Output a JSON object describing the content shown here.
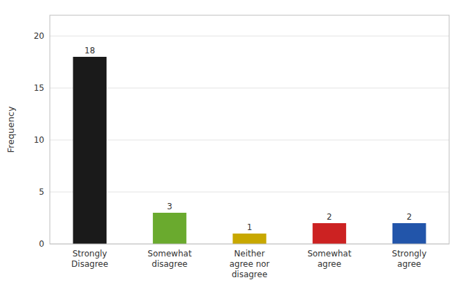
{
  "chart_data": {
    "type": "bar",
    "ylabel": "Frequency",
    "categories": [
      "Strongly\nDisagree",
      "Somewhat\ndisagree",
      "Neither\nagree nor\ndisagree",
      "Somewhat\nagree",
      "Strongly\nagree"
    ],
    "values": [
      18,
      3,
      1,
      2,
      2
    ],
    "colors": [
      "#1a1a1a",
      "#6aaa2e",
      "#c8a800",
      "#cc2222",
      "#2255aa"
    ],
    "ylim": [
      0,
      22
    ],
    "yticks": [
      0,
      5,
      10,
      15,
      20
    ],
    "grid": true,
    "data_labels": true
  }
}
